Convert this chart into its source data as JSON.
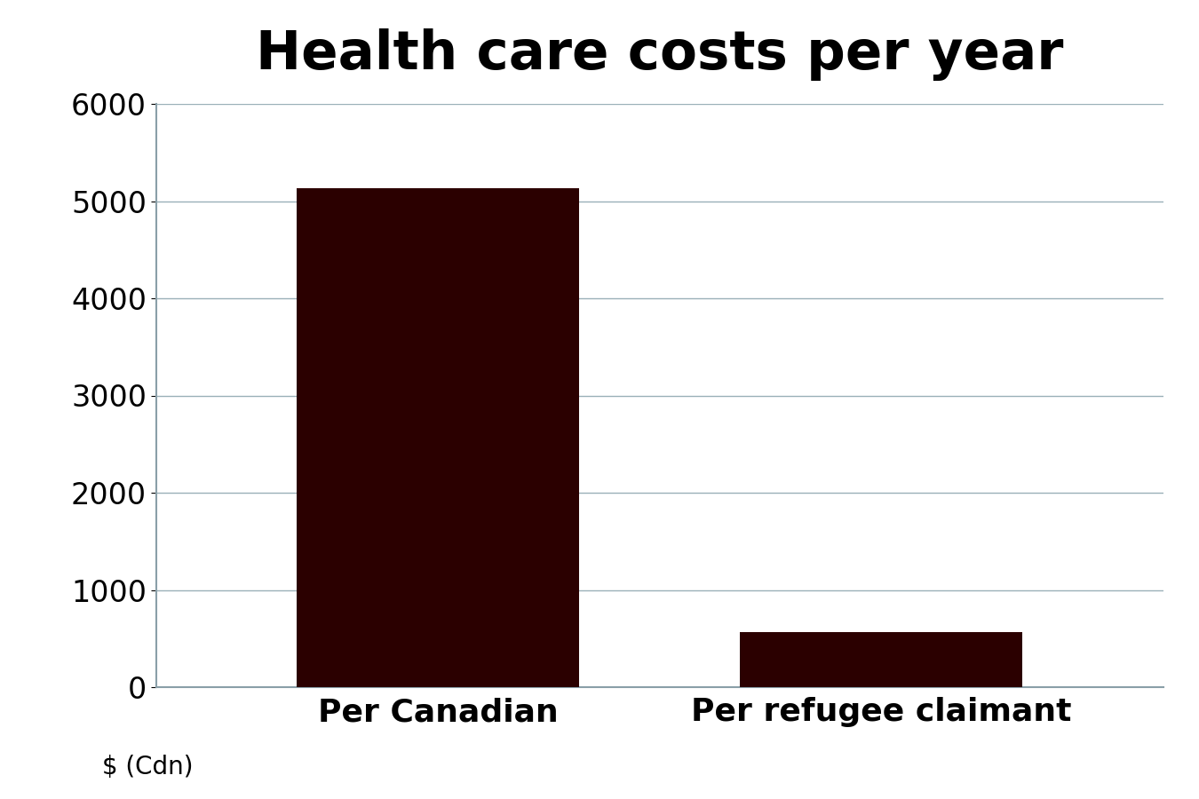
{
  "title": "Health care costs per year",
  "categories": [
    "Per Canadian",
    "Per refugee claimant"
  ],
  "values": [
    5130,
    570
  ],
  "bar_color": "#2b0000",
  "ylabel": "$ (Cdn)",
  "ylim": [
    0,
    6000
  ],
  "yticks": [
    0,
    1000,
    2000,
    3000,
    4000,
    5000,
    6000
  ],
  "background_color": "#ffffff",
  "title_fontsize": 44,
  "tick_fontsize": 24,
  "label_fontsize": 26,
  "ylabel_fontsize": 20,
  "grid_color": "#9ab0b8",
  "spine_color": "#8a9fa8",
  "bar_width": 0.28,
  "bar_positions": [
    0.28,
    0.72
  ]
}
